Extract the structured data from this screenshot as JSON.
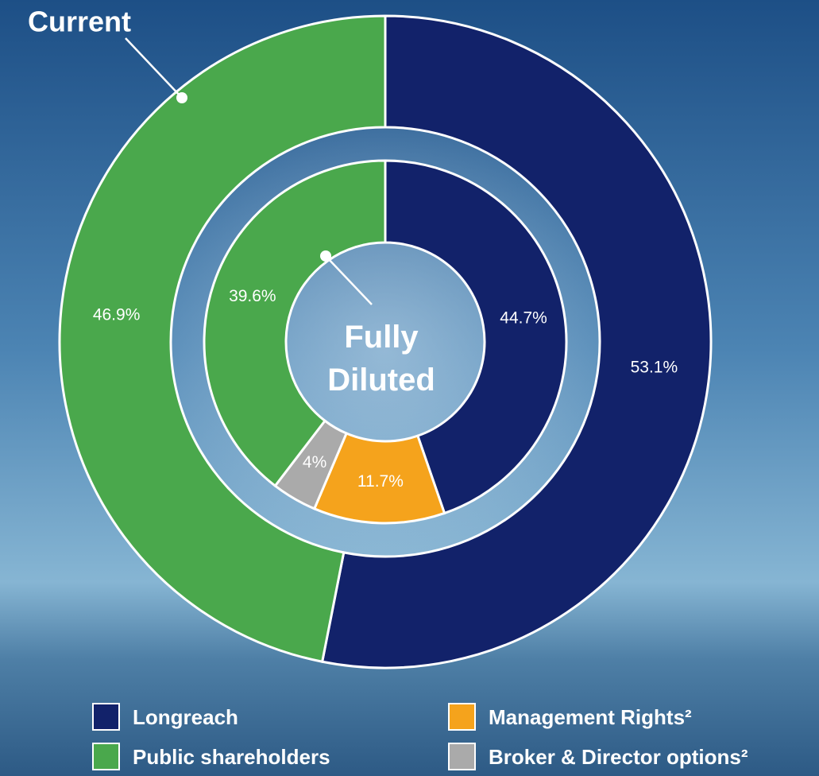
{
  "chart_data": {
    "type": "nested-donut",
    "rings": [
      "Current",
      "Fully Diluted"
    ],
    "series": [
      {
        "name": "Longreach",
        "color": "#12226a",
        "values": [
          53.1,
          44.7
        ],
        "value_labels": [
          "53.1%",
          "44.7%"
        ]
      },
      {
        "name": "Public shareholders",
        "color": "#4aa84c",
        "values": [
          46.9,
          39.6
        ],
        "value_labels": [
          "46.9%",
          "39.6%"
        ]
      },
      {
        "name": "Management Rights²",
        "color": "#f5a31c",
        "values": [
          null,
          11.7
        ],
        "value_labels": [
          null,
          "11.7%"
        ]
      },
      {
        "name": "Broker & Director options²",
        "color": "#aaaaaa",
        "values": [
          null,
          4
        ],
        "value_labels": [
          null,
          "4%"
        ]
      }
    ]
  }
}
